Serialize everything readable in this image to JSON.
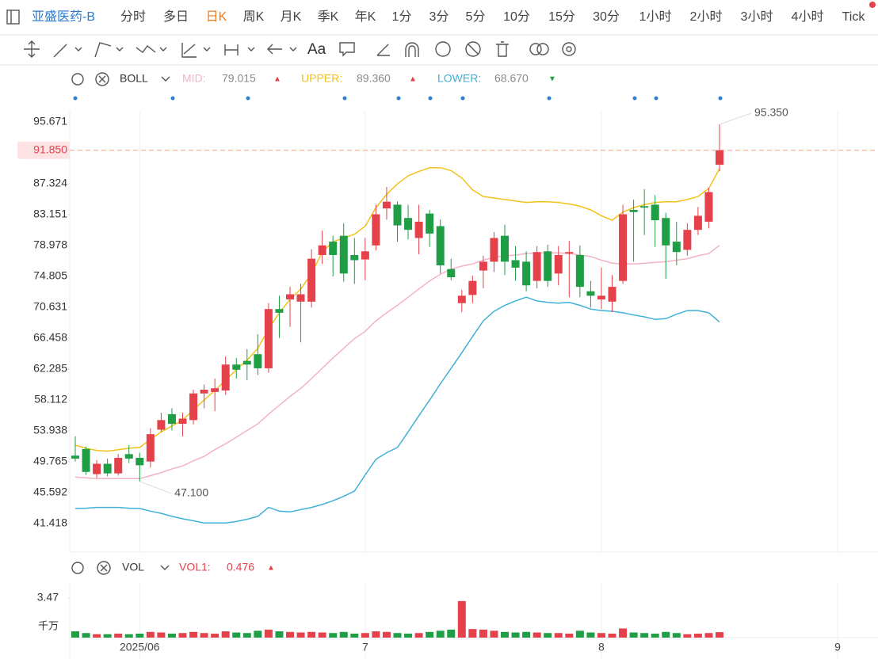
{
  "toolbar": {
    "symbol": "亚盛医药-B",
    "periods": [
      "分时",
      "多日",
      "日K",
      "周K",
      "月K",
      "季K",
      "年K",
      "1分",
      "3分",
      "5分",
      "10分",
      "15分",
      "30分",
      "1小时",
      "2小时",
      "3小时",
      "4小时",
      "Tick"
    ],
    "active": "日K",
    "text_tool": "Aa"
  },
  "chart_data": [
    {
      "type": "candlestick",
      "indicator": "BOLL",
      "categories": [
        null,
        null,
        null,
        null,
        null,
        null,
        "2025/06",
        null,
        null,
        null,
        null,
        null,
        null,
        null,
        null,
        null,
        null,
        null,
        null,
        null,
        null,
        null,
        null,
        null,
        null,
        null,
        null,
        "7",
        null,
        null,
        null,
        null,
        null,
        null,
        null,
        null,
        null,
        null,
        null,
        null,
        null,
        null,
        null,
        null,
        null,
        null,
        null,
        null,
        null,
        "8",
        null,
        null,
        null,
        null,
        null,
        null,
        null,
        null,
        null,
        null,
        null,
        null,
        null,
        null,
        null,
        null,
        null,
        null,
        null,
        null,
        null,
        "9",
        null,
        null,
        null
      ],
      "open": [
        50.6,
        51.5,
        48.1,
        49.5,
        48.2,
        50.8,
        50.3,
        49.8,
        54.1,
        56.2,
        54.9,
        55.4,
        59.0,
        59.2,
        59.4,
        62.9,
        63.4,
        64.3,
        62.4,
        70.4,
        71.7,
        71.4,
        71.4,
        77.7,
        79.5,
        80.3,
        77.7,
        77.1,
        79.0,
        84.0,
        84.5,
        82.7,
        80.0,
        83.3,
        81.6,
        75.8,
        71.2,
        72.3,
        75.6,
        76.8,
        80.3,
        77.0,
        76.8,
        74.2,
        78.2,
        75.2,
        77.9,
        77.7,
        72.8,
        71.7,
        71.4,
        74.2,
        83.8,
        84.3,
        84.5,
        82.7,
        79.5,
        78.4,
        81.1,
        82.2,
        89.9,
        null,
        null,
        null,
        null,
        null,
        null,
        null,
        null,
        null,
        null,
        null,
        null,
        null,
        null
      ],
      "high": [
        53.2,
        51.8,
        50.0,
        50.2,
        50.8,
        52.0,
        51.0,
        54.3,
        56.4,
        57.0,
        56.4,
        59.5,
        60.2,
        61.0,
        64.0,
        63.8,
        65.0,
        67.0,
        71.2,
        72.2,
        73.4,
        73.8,
        78.5,
        81.0,
        80.3,
        82.0,
        80.0,
        80.0,
        84.5,
        86.9,
        84.9,
        84.5,
        84.5,
        83.8,
        82.5,
        77.2,
        73.0,
        74.9,
        77.6,
        80.8,
        81.8,
        78.9,
        78.2,
        78.9,
        79.1,
        78.9,
        79.6,
        79.0,
        74.2,
        76.0,
        75.0,
        84.5,
        85.2,
        86.6,
        85.8,
        83.4,
        82.2,
        82.0,
        84.2,
        86.8,
        95.35,
        null,
        null,
        null,
        null,
        null,
        null,
        null,
        null,
        null,
        null,
        null,
        null,
        null,
        null
      ],
      "low": [
        49.8,
        48.0,
        47.6,
        47.8,
        47.9,
        49.6,
        47.1,
        49.0,
        53.8,
        54.0,
        53.2,
        54.8,
        57.0,
        56.6,
        58.8,
        61.0,
        60.8,
        61.5,
        61.8,
        66.5,
        68.0,
        65.9,
        70.6,
        76.5,
        74.8,
        74.1,
        73.8,
        74.3,
        78.3,
        82.5,
        79.5,
        79.8,
        77.8,
        78.8,
        75.2,
        74.3,
        70.0,
        71.2,
        73.2,
        75.4,
        75.0,
        74.2,
        72.8,
        73.2,
        73.4,
        73.6,
        72.0,
        72.0,
        70.6,
        70.4,
        70.0,
        73.8,
        76.8,
        80.4,
        78.8,
        74.5,
        76.3,
        77.6,
        80.4,
        81.3,
        89.0,
        null,
        null,
        null,
        null,
        null,
        null,
        null,
        null,
        null,
        null,
        null,
        null,
        null,
        null
      ],
      "close": [
        50.2,
        48.4,
        49.5,
        48.2,
        50.3,
        50.2,
        49.3,
        53.5,
        55.4,
        54.9,
        55.6,
        59.0,
        59.5,
        59.7,
        62.9,
        62.2,
        62.9,
        62.4,
        70.4,
        69.9,
        72.4,
        72.4,
        77.2,
        79.0,
        77.7,
        75.2,
        77.0,
        78.2,
        83.2,
        84.9,
        81.7,
        81.1,
        82.2,
        80.6,
        76.3,
        74.7,
        72.2,
        74.2,
        76.8,
        80.0,
        76.8,
        76.0,
        73.6,
        78.1,
        74.2,
        77.7,
        78.1,
        73.4,
        72.2,
        72.2,
        73.4,
        83.2,
        83.5,
        84.1,
        82.4,
        79.0,
        78.1,
        81.1,
        83.0,
        86.2,
        91.85,
        null,
        null,
        null,
        null,
        null,
        null,
        null,
        null,
        null,
        null,
        null,
        null,
        null,
        null
      ],
      "up_color": "#e5414b",
      "down_color": "#1f9e45",
      "series": [
        {
          "name": "MID:",
          "color": "#f3b3c3",
          "value_label": "79.015",
          "arrow": "▲",
          "arrow_color": "#e5414b",
          "values": [
            47.7,
            47.6,
            47.5,
            47.5,
            47.5,
            47.5,
            47.5,
            47.9,
            48.3,
            48.8,
            49.2,
            49.9,
            50.5,
            51.4,
            52.2,
            53.1,
            54.0,
            54.9,
            56.2,
            57.4,
            58.6,
            59.7,
            61.0,
            62.4,
            63.8,
            65.1,
            66.4,
            67.4,
            68.8,
            69.9,
            70.9,
            72.0,
            73.1,
            74.2,
            75.1,
            75.8,
            76.2,
            76.5,
            77.0,
            77.4,
            77.6,
            77.7,
            77.9,
            78.0,
            78.0,
            78.0,
            77.9,
            77.7,
            77.5,
            77.0,
            76.6,
            76.5,
            76.5,
            76.6,
            76.7,
            76.8,
            77.0,
            77.2,
            77.6,
            77.9,
            79.015,
            null,
            null,
            null,
            null,
            null,
            null,
            null,
            null,
            null,
            null,
            null,
            null,
            null,
            null
          ]
        },
        {
          "name": "UPPER:",
          "color": "#f2c21b",
          "value_label": "89.360",
          "arrow": "▲",
          "arrow_color": "#e5414b",
          "values": [
            52.0,
            51.6,
            51.3,
            51.2,
            51.4,
            51.6,
            51.7,
            52.8,
            53.8,
            54.6,
            55.4,
            56.8,
            58.1,
            59.4,
            60.8,
            62.2,
            63.5,
            65.1,
            67.7,
            69.9,
            71.7,
            73.1,
            75.2,
            78.1,
            79.5,
            80.0,
            80.5,
            81.6,
            84.1,
            85.9,
            87.3,
            88.4,
            89.0,
            89.5,
            89.5,
            89.1,
            88.1,
            86.5,
            85.6,
            85.4,
            85.2,
            85.0,
            84.8,
            84.9,
            84.9,
            84.8,
            84.6,
            84.3,
            83.8,
            83.0,
            82.4,
            83.5,
            84.1,
            84.5,
            84.8,
            84.9,
            84.9,
            85.2,
            85.6,
            86.7,
            89.36,
            null,
            null,
            null,
            null,
            null,
            null,
            null,
            null,
            null,
            null,
            null,
            null,
            null,
            null
          ]
        },
        {
          "name": "LOWER:",
          "color": "#3fb0d6",
          "value_label": "68.670",
          "arrow": "▼",
          "arrow_color": "#1f9e45",
          "values": [
            43.45,
            43.5,
            43.6,
            43.6,
            43.6,
            43.5,
            43.45,
            43.1,
            42.8,
            42.4,
            42.06,
            41.8,
            41.5,
            41.5,
            41.5,
            41.7,
            42.0,
            42.4,
            43.6,
            43.1,
            43.0,
            43.3,
            43.6,
            44.0,
            44.5,
            45.1,
            45.8,
            48.0,
            50.1,
            51.0,
            51.7,
            53.8,
            56.0,
            58.1,
            60.3,
            62.4,
            64.5,
            66.7,
            68.8,
            70.1,
            70.9,
            71.5,
            72.0,
            71.5,
            71.3,
            71.2,
            71.3,
            70.9,
            70.4,
            70.2,
            70.1,
            69.9,
            69.6,
            69.35,
            69.0,
            69.1,
            69.7,
            70.2,
            70.2,
            69.9,
            68.67,
            null,
            null,
            null,
            null,
            null,
            null,
            null,
            null,
            null,
            null,
            null,
            null,
            null,
            null
          ]
        }
      ],
      "ylim": [
        37.57,
        99.31
      ],
      "yticks": [
        95.671,
        87.324,
        83.151,
        78.978,
        74.805,
        70.631,
        66.458,
        62.285,
        58.112,
        53.938,
        49.765,
        45.592,
        41.418
      ],
      "last_price": {
        "value": 91.85,
        "label": "91.850"
      },
      "max_label": "95.350",
      "min_label": "47.100",
      "xgrid": true
    },
    {
      "type": "bar",
      "indicator": "VOL",
      "unit": "千万",
      "series": [
        {
          "name": "VOL1:",
          "value_label": "0.476",
          "arrow": "▲",
          "arrow_color": "#e5414b",
          "values": [
            0.55,
            0.4,
            0.3,
            0.3,
            0.35,
            0.3,
            0.35,
            0.5,
            0.45,
            0.35,
            0.4,
            0.5,
            0.4,
            0.35,
            0.55,
            0.45,
            0.4,
            0.6,
            0.7,
            0.55,
            0.5,
            0.45,
            0.5,
            0.45,
            0.4,
            0.5,
            0.35,
            0.4,
            0.55,
            0.5,
            0.4,
            0.35,
            0.4,
            0.5,
            0.6,
            0.7,
            3.2,
            0.75,
            0.7,
            0.6,
            0.5,
            0.45,
            0.5,
            0.45,
            0.4,
            0.4,
            0.35,
            0.6,
            0.45,
            0.4,
            0.35,
            0.8,
            0.45,
            0.4,
            0.35,
            0.5,
            0.4,
            0.3,
            0.35,
            0.4,
            0.476,
            null,
            null,
            null,
            null,
            null,
            null,
            null,
            null,
            null,
            null,
            null,
            null,
            null,
            null
          ]
        }
      ],
      "ylim": [
        0,
        4.51
      ],
      "yticks": [
        3.47
      ]
    }
  ]
}
